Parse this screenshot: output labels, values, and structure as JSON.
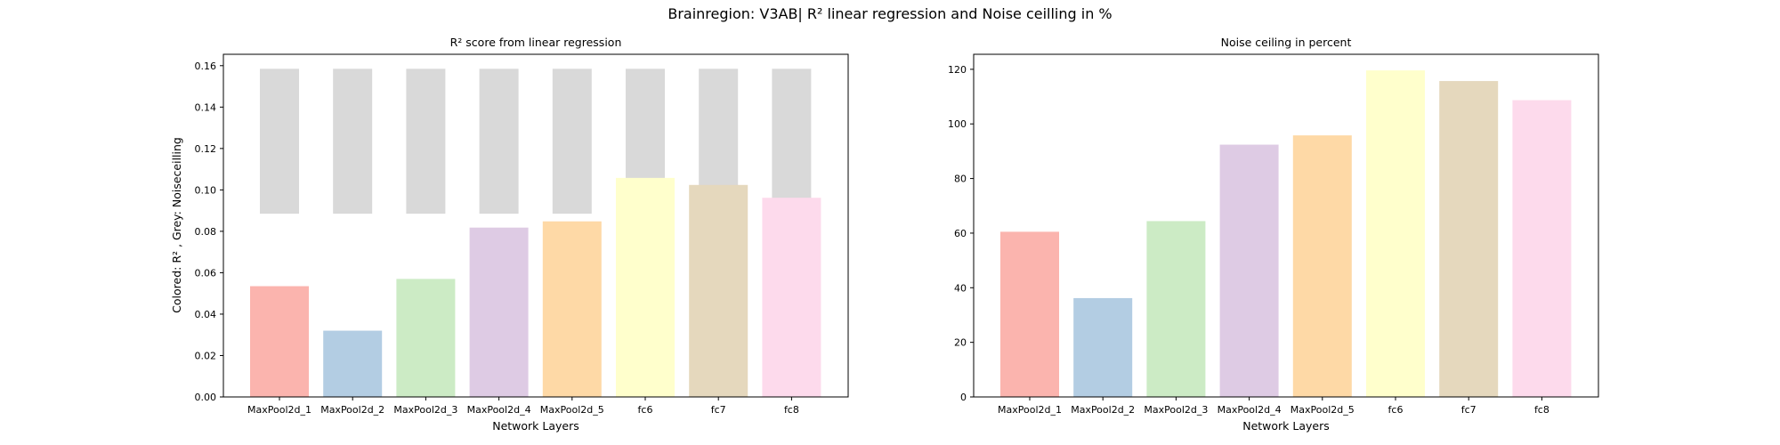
{
  "figure": {
    "suptitle": "Brainregion: V3AB| R² linear regression and Noise ceilling in %"
  },
  "chart_data": [
    {
      "type": "bar",
      "title": "R² score from linear regression",
      "xlabel": "Network Layers",
      "ylabel": "Colored: R² , Grey: Noiseceilling",
      "categories": [
        "MaxPool2d_1",
        "MaxPool2d_2",
        "MaxPool2d_3",
        "MaxPool2d_4",
        "MaxPool2d_5",
        "fc6",
        "fc7",
        "fc8"
      ],
      "series": [
        {
          "values": [
            0.0535,
            0.032,
            0.057,
            0.0818,
            0.0848,
            0.1058,
            0.1024,
            0.0962
          ],
          "colors": [
            "#fbb4ae",
            "#b3cde3",
            "#ccebc5",
            "#decbe4",
            "#fed9a6",
            "#ffffcc",
            "#e5d8bd",
            "#fddaec"
          ]
        }
      ],
      "noise_ceiling_range": {
        "low": 0.0885,
        "high": 0.1585,
        "color": "#d9d9d9"
      },
      "ylim": [
        0,
        0.1655
      ],
      "yticks": [
        "0.00",
        "0.02",
        "0.04",
        "0.06",
        "0.08",
        "0.10",
        "0.12",
        "0.14",
        "0.16"
      ],
      "grid": false
    },
    {
      "type": "bar",
      "title": "Noise ceiling in percent",
      "xlabel": "Network Layers",
      "ylabel": "",
      "categories": [
        "MaxPool2d_1",
        "MaxPool2d_2",
        "MaxPool2d_3",
        "MaxPool2d_4",
        "MaxPool2d_5",
        "fc6",
        "fc7",
        "fc8"
      ],
      "series": [
        {
          "values": [
            60.5,
            36.2,
            64.4,
            92.4,
            95.8,
            119.6,
            115.7,
            108.7
          ],
          "colors": [
            "#fbb4ae",
            "#b3cde3",
            "#ccebc5",
            "#decbe4",
            "#fed9a6",
            "#ffffcc",
            "#e5d8bd",
            "#fddaec"
          ]
        }
      ],
      "ylim": [
        0,
        125.5
      ],
      "yticks": [
        "0",
        "20",
        "40",
        "60",
        "80",
        "100",
        "120"
      ],
      "grid": false
    }
  ]
}
